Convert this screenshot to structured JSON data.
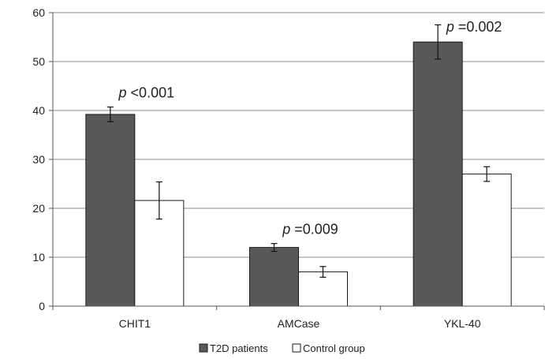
{
  "chart_data": {
    "type": "bar",
    "categories": [
      "CHIT1",
      "AMCase",
      "YKL-40"
    ],
    "series": [
      {
        "name": "T2D patients",
        "values": [
          39.2,
          12.0,
          54.0
        ],
        "errors": [
          1.5,
          0.8,
          3.5
        ],
        "color": "#595959"
      },
      {
        "name": "Control group",
        "values": [
          21.6,
          7.0,
          27.0
        ],
        "errors": [
          3.8,
          1.1,
          1.5
        ],
        "color": "#ffffff"
      }
    ],
    "annotations": [
      {
        "category": "CHIT1",
        "prefix": "p",
        "text": " <0.001"
      },
      {
        "category": "AMCase",
        "prefix": "p",
        "text": " =0.009"
      },
      {
        "category": "YKL-40",
        "prefix": "p",
        "text": " =0.002"
      }
    ],
    "yticks": [
      "0",
      "10",
      "20",
      "30",
      "40",
      "50",
      "60"
    ],
    "ylim": [
      0,
      60
    ],
    "grid": true,
    "legend_position": "bottom",
    "title": "",
    "xlabel": "",
    "ylabel": ""
  }
}
